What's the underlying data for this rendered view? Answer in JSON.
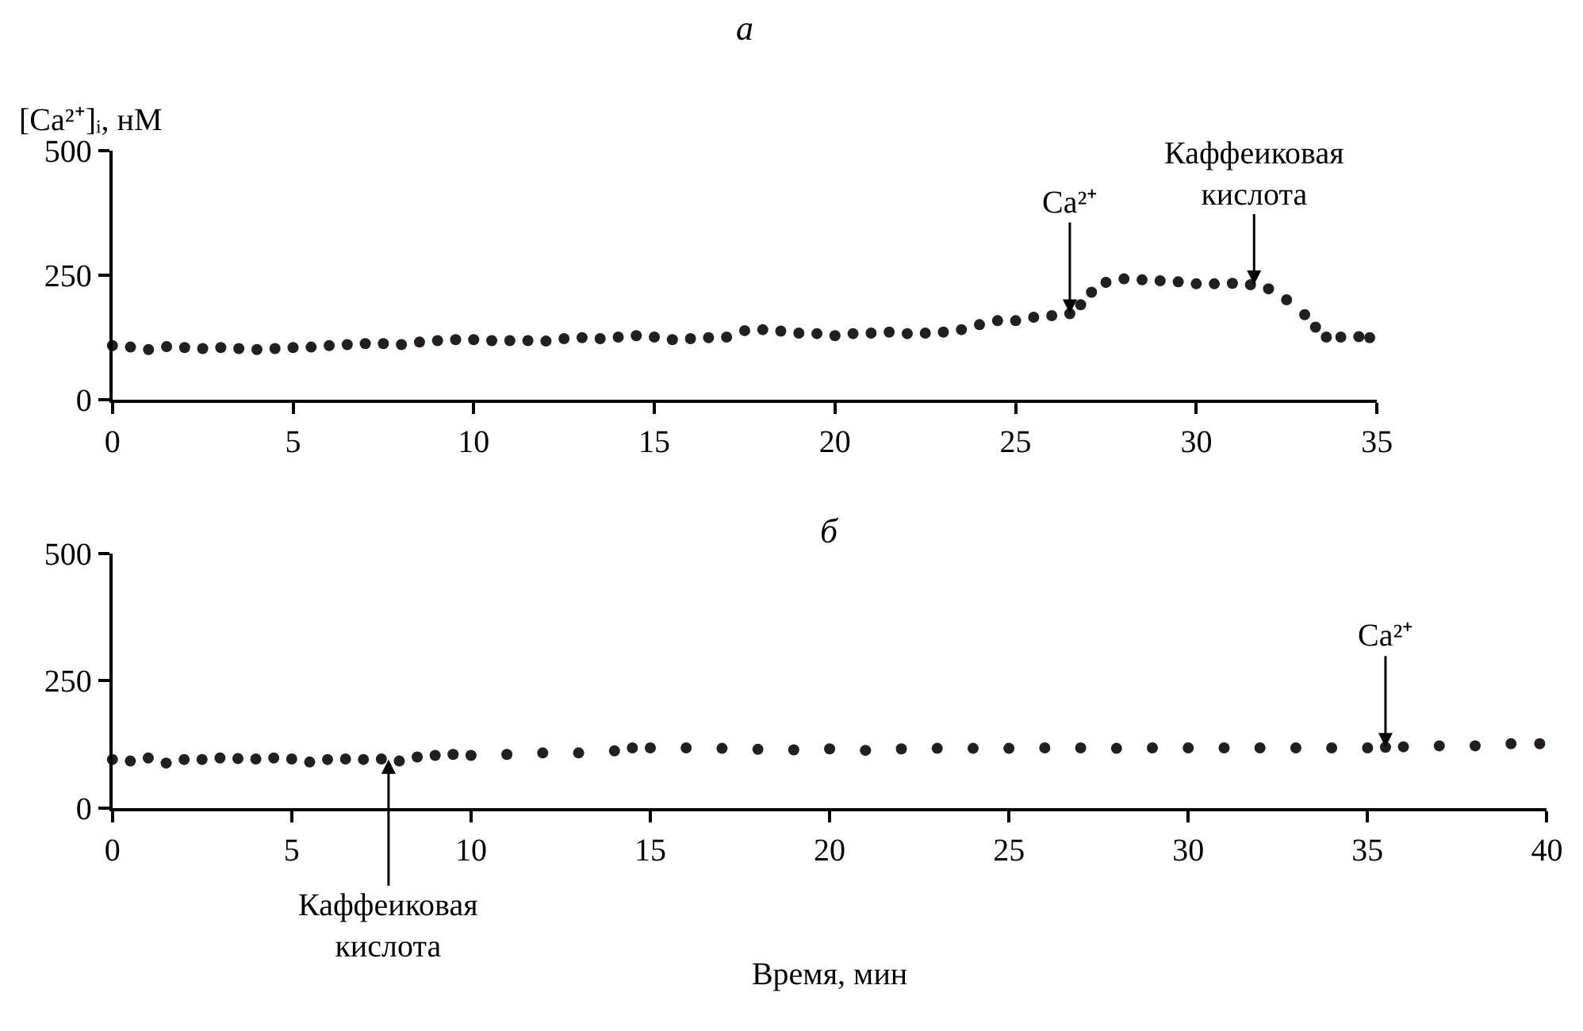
{
  "chart_data": [
    {
      "type": "scatter",
      "title": "а",
      "ylabel": "[Ca²⁺]ᵢ, нМ",
      "marker": "circle",
      "xlim": [
        0,
        35
      ],
      "xticks": [
        0,
        5,
        10,
        15,
        20,
        25,
        30,
        35
      ],
      "ylim": [
        0,
        500
      ],
      "yticks": [
        0,
        250,
        500
      ],
      "annotations": [
        {
          "text": "Ca²⁺",
          "x": 26.5,
          "y": 172
        },
        {
          "text": "Каффеиковая кислота",
          "x": 31.6,
          "y": 230
        }
      ],
      "series": [
        {
          "color": "#231f20",
          "x": [
            0,
            0.5,
            1,
            1.5,
            2,
            2.5,
            3,
            3.5,
            4,
            4.5,
            5,
            5.5,
            6,
            6.5,
            7,
            7.5,
            8,
            8.5,
            9,
            9.5,
            10,
            10.5,
            11,
            11.5,
            12,
            12.5,
            13,
            13.5,
            14,
            14.5,
            15,
            15.5,
            16,
            16.5,
            17,
            17.5,
            18,
            18.5,
            19,
            19.5,
            20,
            20.5,
            21,
            21.5,
            22,
            22.5,
            23,
            23.5,
            24,
            24.5,
            25,
            25.5,
            26,
            26.5,
            26.8,
            27.1,
            27.5,
            28,
            28.5,
            29,
            29.5,
            30,
            30.5,
            31,
            31.5,
            32,
            32.5,
            33,
            33.3,
            33.6,
            34,
            34.5,
            34.8
          ],
          "values": [
            108,
            105,
            100,
            106,
            104,
            102,
            104,
            102,
            100,
            102,
            104,
            105,
            108,
            110,
            112,
            112,
            110,
            115,
            118,
            120,
            120,
            118,
            118,
            118,
            117,
            122,
            124,
            122,
            125,
            128,
            125,
            120,
            122,
            124,
            125,
            138,
            140,
            137,
            133,
            132,
            128,
            132,
            133,
            135,
            132,
            133,
            135,
            140,
            150,
            158,
            158,
            165,
            168,
            172,
            190,
            215,
            235,
            242,
            240,
            238,
            236,
            232,
            232,
            233,
            230,
            222,
            200,
            170,
            145,
            125,
            125,
            126,
            124
          ]
        }
      ]
    },
    {
      "type": "scatter",
      "title": "б",
      "xlabel": "Время, мин",
      "marker": "circle",
      "xlim": [
        0,
        40
      ],
      "xticks": [
        0,
        5,
        10,
        15,
        20,
        25,
        30,
        35,
        40
      ],
      "ylim": [
        0,
        500
      ],
      "yticks": [
        0,
        250,
        500
      ],
      "annotations": [
        {
          "text": "Каффеиковая кислота",
          "x": 7.7,
          "y": 95
        },
        {
          "text": "Ca²⁺",
          "x": 35.5,
          "y": 119
        }
      ],
      "series": [
        {
          "color": "#231f20",
          "x": [
            0,
            0.5,
            1,
            1.5,
            2,
            2.5,
            3,
            3.5,
            4,
            4.5,
            5,
            5.5,
            6,
            6.5,
            7,
            7.5,
            8,
            8.5,
            9,
            9.5,
            10,
            11,
            12,
            13,
            14,
            14.5,
            15,
            16,
            17,
            18,
            19,
            20,
            21,
            22,
            23,
            24,
            25,
            26,
            27,
            28,
            29,
            30,
            31,
            32,
            33,
            34,
            35,
            35.5,
            36,
            37,
            38,
            39,
            39.8
          ],
          "values": [
            95,
            92,
            98,
            88,
            95,
            95,
            98,
            97,
            96,
            98,
            96,
            90,
            95,
            96,
            95,
            96,
            92,
            100,
            103,
            105,
            103,
            105,
            108,
            108,
            112,
            118,
            118,
            118,
            117,
            115,
            114,
            116,
            113,
            116,
            117,
            117,
            117,
            118,
            118,
            117,
            118,
            118,
            118,
            118,
            118,
            118,
            118,
            119,
            120,
            122,
            122,
            126,
            126
          ]
        }
      ]
    }
  ]
}
